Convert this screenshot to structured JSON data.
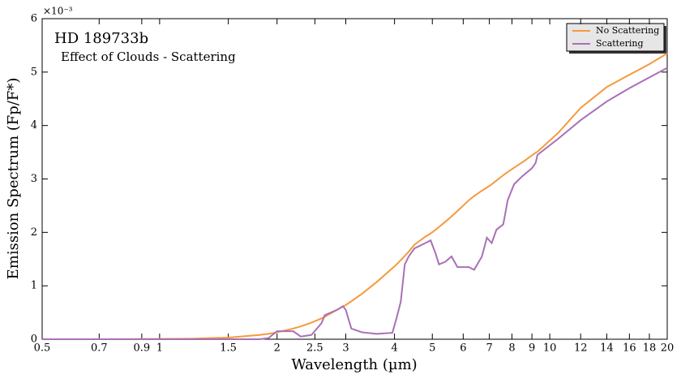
{
  "chart_data": {
    "type": "line",
    "title": "HD 189733b",
    "subtitle": "Effect of Clouds - Scattering",
    "x_label": "Wavelength (µm)",
    "y_label": "Emission Spectrum (Fp/F*)",
    "y_offset_label": "×10⁻³",
    "x_log": true,
    "legend": "upper right",
    "xlim": [
      0.5,
      20
    ],
    "ylim": [
      0,
      6
    ],
    "xticks": [
      0.5,
      0.7,
      0.9,
      1,
      1.5,
      2,
      2.5,
      3,
      4,
      5,
      6,
      7,
      8,
      9,
      10,
      12,
      14,
      16,
      18,
      20
    ],
    "yticks": [
      0,
      1,
      2,
      3,
      4,
      5,
      6
    ],
    "x": [
      0.5,
      0.7,
      1,
      1.2,
      1.5,
      1.8,
      1.9,
      2.0,
      2.2,
      2.3,
      2.45,
      2.6,
      2.65,
      2.85,
      2.95,
      3.0,
      3.1,
      3.3,
      3.6,
      3.95,
      4.05,
      4.15,
      4.25,
      4.35,
      4.5,
      4.8,
      4.95,
      5.1,
      5.2,
      5.4,
      5.6,
      5.8,
      6.2,
      6.4,
      6.7,
      6.9,
      7.1,
      7.3,
      7.6,
      7.8,
      8.1,
      8.5,
      9.0,
      9.2,
      9.3,
      10.5,
      12,
      14,
      16,
      18,
      20
    ],
    "series": [
      {
        "name": "No Scattering",
        "color": "#f59a3c",
        "values": [
          0,
          0,
          0.005,
          0.01,
          0.03,
          0.08,
          0.1,
          0.13,
          0.2,
          0.24,
          0.31,
          0.39,
          0.42,
          0.55,
          0.61,
          0.64,
          0.71,
          0.85,
          1.07,
          1.33,
          1.4,
          1.48,
          1.56,
          1.64,
          1.77,
          1.92,
          1.98,
          2.05,
          2.1,
          2.2,
          2.3,
          2.4,
          2.6,
          2.68,
          2.78,
          2.84,
          2.9,
          2.97,
          3.07,
          3.13,
          3.21,
          3.31,
          3.44,
          3.49,
          3.51,
          3.86,
          4.33,
          4.72,
          4.95,
          5.15,
          5.35
        ]
      },
      {
        "name": "Scattering",
        "color": "#a970b6",
        "values": [
          0,
          0,
          0,
          0,
          0,
          0,
          0.02,
          0.15,
          0.15,
          0.05,
          0.08,
          0.3,
          0.45,
          0.55,
          0.62,
          0.55,
          0.2,
          0.13,
          0.1,
          0.12,
          0.4,
          0.7,
          1.4,
          1.55,
          1.7,
          1.8,
          1.85,
          1.6,
          1.4,
          1.45,
          1.55,
          1.35,
          1.35,
          1.3,
          1.55,
          1.9,
          1.8,
          2.05,
          2.15,
          2.6,
          2.9,
          3.05,
          3.2,
          3.3,
          3.45,
          3.75,
          4.1,
          4.45,
          4.7,
          4.9,
          5.08
        ]
      }
    ]
  }
}
